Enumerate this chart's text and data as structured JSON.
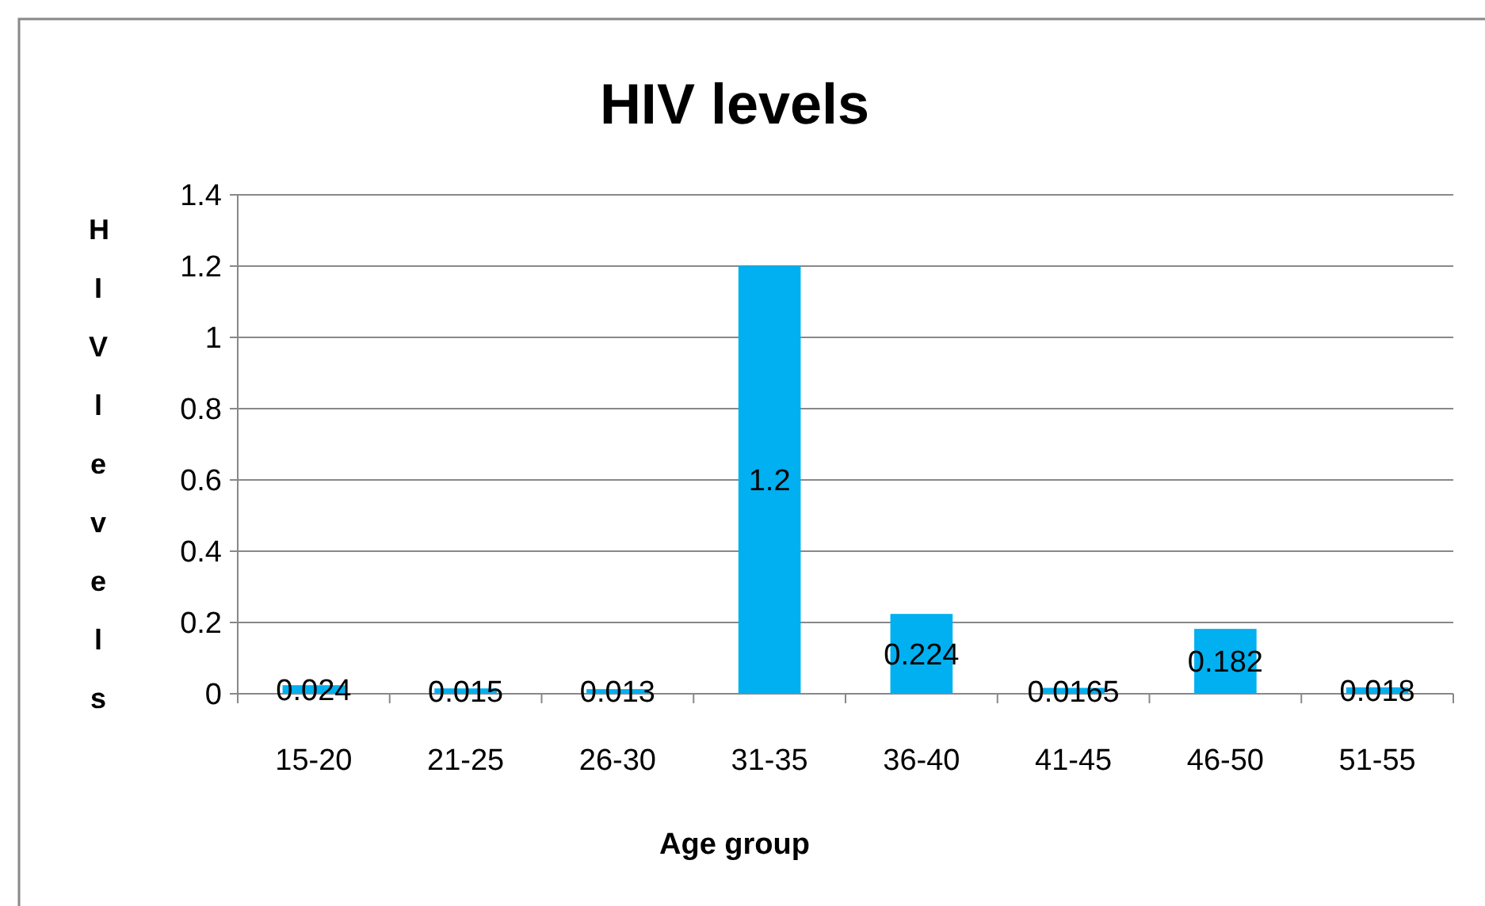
{
  "chart_data": {
    "type": "bar",
    "title": "HIV levels",
    "xlabel": "Age group",
    "ylabel": "HIV levels",
    "categories": [
      "15-20",
      "21-25",
      "26-30",
      "31-35",
      "36-40",
      "41-45",
      "46-50",
      "51-55"
    ],
    "values": [
      0.024,
      0.015,
      0.013,
      1.2,
      0.224,
      0.0165,
      0.182,
      0.018
    ],
    "color": "#00b0f0",
    "ylim": [
      0,
      1.4
    ],
    "yticks": [
      0,
      0.2,
      0.4,
      0.6,
      0.8,
      1,
      1.2,
      1.4
    ],
    "grid": "y",
    "data_labels": true,
    "legend": false
  }
}
